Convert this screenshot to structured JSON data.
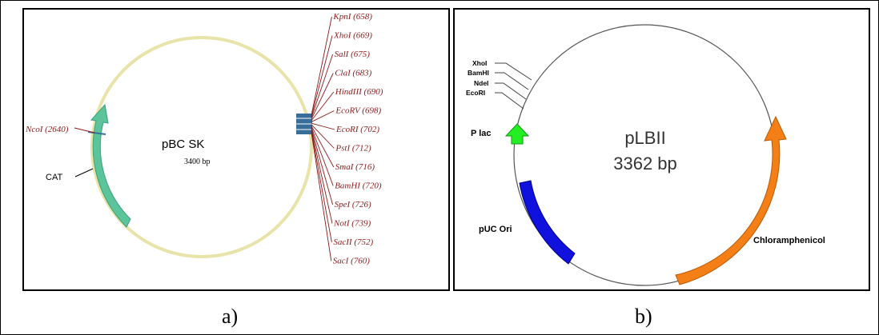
{
  "panel_a": {
    "plasmid_name": "pBC SK",
    "size_label": "3400 bp",
    "gene_label": "CAT",
    "ncoi_label": "NcoI (2640)",
    "sites": [
      "KpnI (658)",
      "XhoI (669)",
      "SalI (675)",
      "ClaI (683)",
      "HindIII (690)",
      "EcoRV (698)",
      "EcoRI (702)",
      "PstI (712)",
      "SmaI (716)",
      "BamHI (720)",
      "SpeI (726)",
      "NotI (739)",
      "SacII (752)",
      "SacI (760)"
    ],
    "colors": {
      "backbone": "#e8e3a8",
      "cat": "#5cc49a",
      "mcs": "#3a6e9a",
      "label": "#8b1a1a"
    }
  },
  "panel_b": {
    "plasmid_name": "pLBII",
    "size_label": "3362 bp",
    "sites": [
      "XhoI",
      "BamHI",
      "NdeI",
      "EcoRI"
    ],
    "plac_label": "P lac",
    "ori_label": "pUC Ori",
    "chl_label": "Chloramphenicol",
    "colors": {
      "plac": "#22ee22",
      "ori": "#1111dd",
      "chl": "#f47f17"
    }
  },
  "captions": {
    "a": "a)",
    "b": "b)"
  }
}
